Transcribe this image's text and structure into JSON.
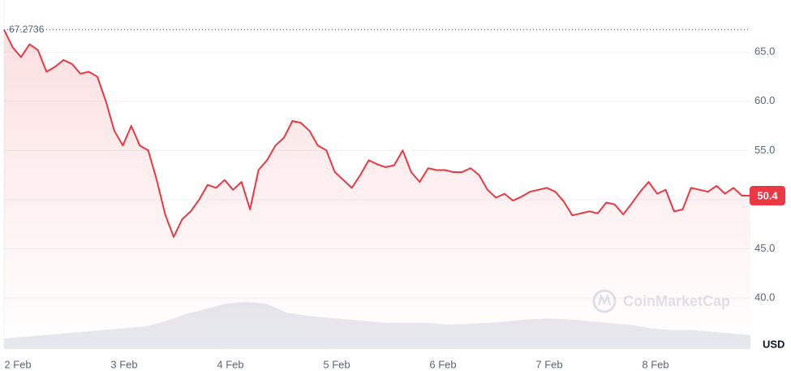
{
  "chart_data": {
    "type": "line",
    "color": "#ea3943",
    "values": [
      67.2736,
      65.5,
      64.5,
      65.8,
      65.2,
      63.0,
      63.5,
      64.2,
      63.8,
      62.8,
      63.0,
      62.5,
      60.0,
      57.0,
      55.5,
      57.5,
      55.5,
      55.0,
      52.0,
      48.5,
      46.2,
      48.0,
      48.8,
      50.0,
      51.5,
      51.2,
      52.0,
      51.0,
      51.8,
      49.0,
      53.0,
      54.0,
      55.5,
      56.3,
      58.0,
      57.8,
      57.0,
      55.5,
      55.0,
      52.8,
      52.0,
      51.2,
      52.5,
      54.0,
      53.6,
      53.3,
      53.5,
      55.0,
      52.8,
      51.8,
      53.2,
      53.0,
      53.0,
      52.8,
      52.8,
      53.2,
      52.5,
      51.0,
      50.2,
      50.6,
      49.9,
      50.3,
      50.8,
      51.0,
      51.2,
      50.8,
      49.8,
      48.4,
      48.6,
      48.8,
      48.6,
      49.7,
      49.5,
      48.5,
      49.6,
      50.8,
      51.8,
      50.6,
      51.0,
      48.8,
      49.0,
      51.2,
      51.0,
      50.8,
      51.4,
      50.6,
      51.2,
      50.4,
      50.4
    ],
    "ylim": [
      34.8,
      70.3
    ],
    "yticks": [
      {
        "value": 40,
        "label": "40.0"
      },
      {
        "value": 45,
        "label": "45.0"
      },
      {
        "value": 50,
        "label": "50.0"
      },
      {
        "value": 55,
        "label": "55.0"
      },
      {
        "value": 60,
        "label": "60.0"
      },
      {
        "value": 65,
        "label": "65.0"
      }
    ],
    "x_labels": [
      "2 Feb",
      "3 Feb",
      "4 Feb",
      "5 Feb",
      "6 Feb",
      "7 Feb",
      "8 Feb"
    ],
    "high": 67.2736,
    "last_price": 50.4,
    "unit": "USD",
    "watermark": "CoinMarketCap",
    "volume": {
      "color": "#e6e8ee",
      "ylim": [
        0,
        100
      ],
      "values": [
        3,
        3.5,
        4,
        4.5,
        5,
        5.5,
        6,
        6.5,
        8,
        10,
        11.5,
        13,
        13.5,
        13,
        10.5,
        9.5,
        9,
        8.5,
        8,
        7.5,
        7.5,
        7.5,
        7,
        7.2,
        7.5,
        8,
        8.5,
        8.8,
        8.5,
        8,
        7.5,
        7,
        6,
        5.5,
        5.5,
        5,
        4.5,
        4
      ]
    }
  }
}
